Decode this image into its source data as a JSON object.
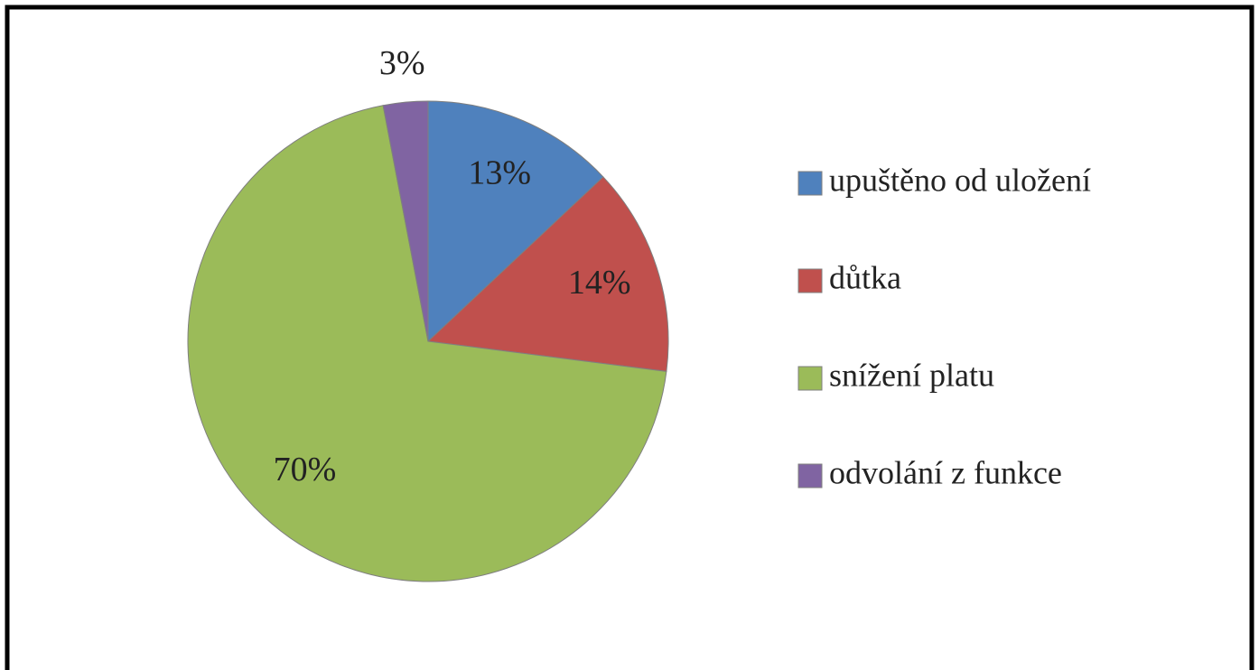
{
  "chart_data": {
    "type": "pie",
    "categories": [
      "upuštěno od uložení",
      "důtka",
      "snížení platu",
      "odvolání z funkce"
    ],
    "values": [
      13,
      14,
      70,
      3
    ],
    "value_labels": [
      "13%",
      "14%",
      "70%",
      "3%"
    ],
    "colors": [
      "#4f81bd",
      "#c0504d",
      "#9bbb59",
      "#8064a2"
    ],
    "legend": "right"
  }
}
